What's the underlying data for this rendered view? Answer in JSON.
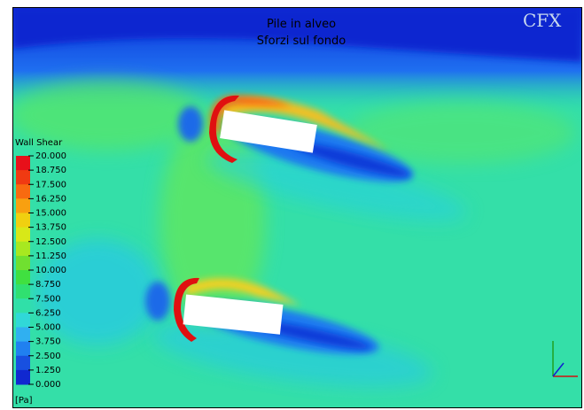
{
  "title": {
    "line1": "Pile in alveo",
    "line2": "Sforzi sul fondo"
  },
  "logo": "CFX",
  "legend": {
    "title": "Wall Shear",
    "labels": [
      "20.000",
      "18.750",
      "17.500",
      "16.250",
      "15.000",
      "13.750",
      "12.500",
      "11.250",
      "10.000",
      "8.750",
      "7.500",
      "6.250",
      "5.000",
      "3.750",
      "2.500",
      "1.250",
      "0.000"
    ],
    "unit": "[Pa]"
  }
}
